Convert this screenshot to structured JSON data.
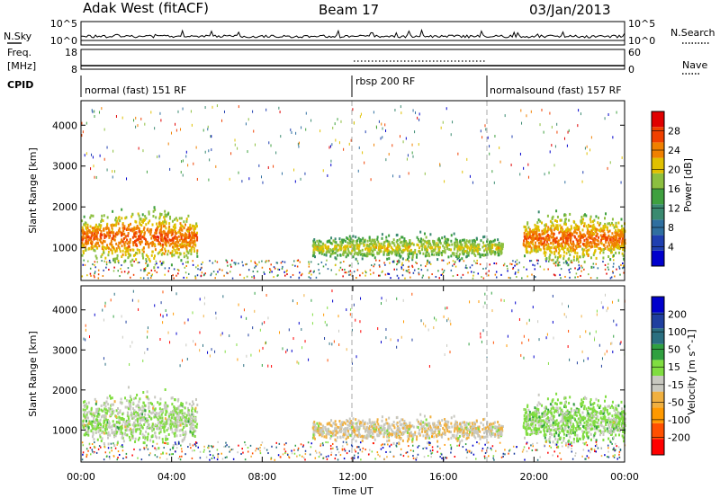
{
  "header": {
    "title": "Adak West (fitACF)",
    "beam": "Beam 17",
    "date": "03/Jan/2013"
  },
  "top_panel": {
    "nsky_label": "N.Sky",
    "nsearch_label": "N.Search",
    "left_ticks": [
      "10^5",
      "10^0"
    ],
    "right_ticks": [
      "10^5",
      "10^0"
    ]
  },
  "freq_panel": {
    "freq_label_line1": "Freq.",
    "freq_label_line2": "[MHz]",
    "nave_label": "Nave",
    "left_ticks": [
      "18",
      "8"
    ],
    "right_ticks": [
      "60",
      "0"
    ]
  },
  "cpid": {
    "label": "CPID",
    "modes": [
      {
        "name": "normal (fast) 151 RF",
        "start_hour": 0,
        "end_hour": 12
      },
      {
        "name": "rbsp 200 RF",
        "start_hour": 12,
        "end_hour": 18
      },
      {
        "name": "normalsound (fast) 157 RF",
        "start_hour": 18,
        "end_hour": 24
      }
    ]
  },
  "x_axis": {
    "label": "Time UT",
    "ticks": [
      "00:00",
      "04:00",
      "08:00",
      "12:00",
      "16:00",
      "20:00",
      "00:00"
    ]
  },
  "power_colorbar": {
    "label": "Power [dB]",
    "ticks": [
      "28",
      "24",
      "20",
      "16",
      "12",
      "8",
      "4"
    ],
    "colors": [
      "#0000cc",
      "#1f3fb0",
      "#2f6fa0",
      "#3a8a70",
      "#3fa03f",
      "#8cbf3f",
      "#e0c000",
      "#f08000",
      "#f04000",
      "#e00000"
    ]
  },
  "velocity_colorbar": {
    "label": "Velocity [m s^-1]",
    "ticks": [
      "200",
      "100",
      "50",
      "15",
      "-15",
      "-50",
      "-100",
      "-200"
    ],
    "colors": [
      "#ff0000",
      "#ff5000",
      "#ff9900",
      "#f0b040",
      "#c8c8c0",
      "#80dd40",
      "#30a040",
      "#2a6f80",
      "#1f3f9f",
      "#0000cc"
    ]
  },
  "chart_data": [
    {
      "type": "heatmap",
      "title": "Power",
      "xlabel": "",
      "ylabel": "Slant Range [km]",
      "xlim_hours": [
        0,
        24
      ],
      "ylim": [
        200,
        4600
      ],
      "yticks": [
        1000,
        2000,
        3000,
        4000
      ],
      "colorbar_range_db": [
        0,
        30
      ],
      "scatter_regions": [
        {
          "t_start": 0.0,
          "t_end": 5.1,
          "range_min": 600,
          "range_max": 2600,
          "typical_power_db": 26
        },
        {
          "t_start": 10.2,
          "t_end": 18.6,
          "range_min": 700,
          "range_max": 1600,
          "typical_power_db": 20
        },
        {
          "t_start": 19.5,
          "t_end": 24.0,
          "range_min": 650,
          "range_max": 2400,
          "typical_power_db": 26
        }
      ]
    },
    {
      "type": "heatmap",
      "title": "Velocity",
      "xlabel": "Time UT",
      "ylabel": "Slant Range [km]",
      "xlim_hours": [
        0,
        24
      ],
      "ylim": [
        200,
        4600
      ],
      "yticks": [
        1000,
        2000,
        3000,
        4000
      ],
      "colorbar_range_ms": [
        -250,
        250
      ],
      "scatter_regions": [
        {
          "t_start": 0.0,
          "t_end": 5.1,
          "range_min": 600,
          "range_max": 2600,
          "typical_velocity": 0
        },
        {
          "t_start": 10.2,
          "t_end": 18.6,
          "range_min": 700,
          "range_max": 1600,
          "typical_velocity": -40
        },
        {
          "t_start": 19.5,
          "t_end": 24.0,
          "range_min": 650,
          "range_max": 2400,
          "typical_velocity": 20
        }
      ]
    }
  ]
}
